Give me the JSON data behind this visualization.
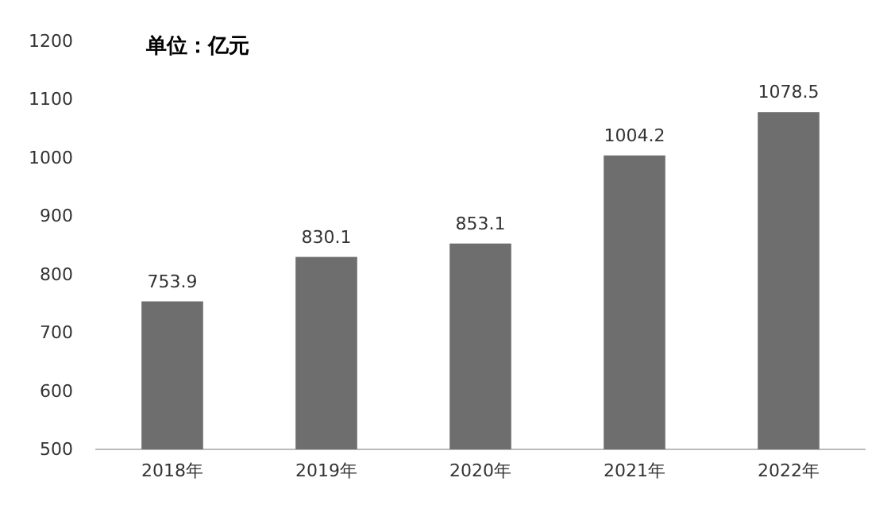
{
  "chart_data": {
    "type": "bar",
    "title": "单位：亿元",
    "categories": [
      "2018年",
      "2019年",
      "2020年",
      "2021年",
      "2022年"
    ],
    "values": [
      753.9,
      830.1,
      853.1,
      1004.2,
      1078.5
    ],
    "color": "#6e6e6e",
    "ylim": [
      500,
      1200
    ],
    "yticks": [
      500,
      600,
      700,
      800,
      900,
      1000,
      1100,
      1200
    ],
    "data_labels": true
  }
}
